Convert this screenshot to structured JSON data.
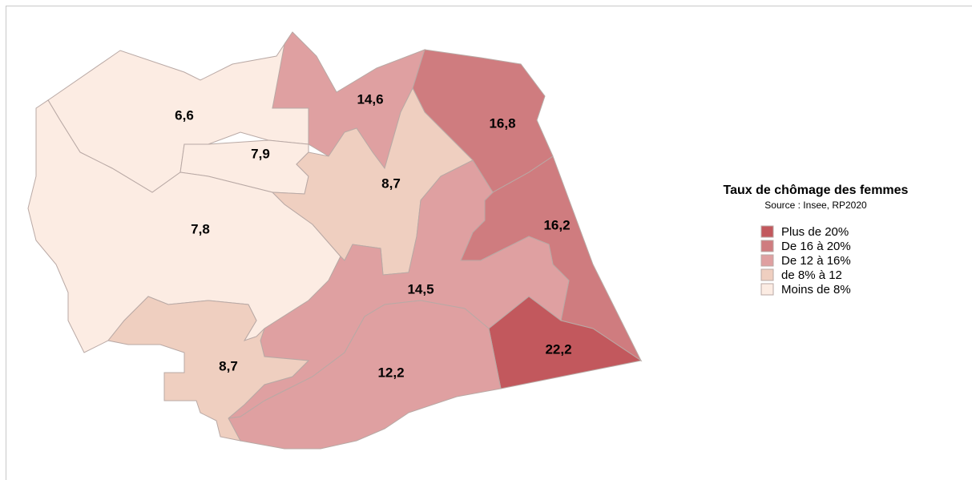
{
  "legend": {
    "title": "Taux de chômage des femmes",
    "source": "Source : Insee, RP2020",
    "items": [
      {
        "label": "Plus de 20%",
        "color": "#c2585d"
      },
      {
        "label": "De 16 à 20%",
        "color": "#cf7c7f"
      },
      {
        "label": "De 12 à 16%",
        "color": "#dfa0a1"
      },
      {
        "label": "de 8% à 12",
        "color": "#efcfc0"
      },
      {
        "label": "Moins de 8%",
        "color": "#fcece3"
      }
    ]
  },
  "regions": [
    {
      "label": "6,6",
      "color": "#fcece3"
    },
    {
      "label": "7,9",
      "color": "#fcece3"
    },
    {
      "label": "7,8",
      "color": "#fcece3"
    },
    {
      "label": "14,6",
      "color": "#dfa0a1"
    },
    {
      "label": "16,8",
      "color": "#cf7c7f"
    },
    {
      "label": "8,7",
      "color": "#efcfc0"
    },
    {
      "label": "16,2",
      "color": "#cf7c7f"
    },
    {
      "label": "14,5",
      "color": "#dfa0a1"
    },
    {
      "label": "22,2",
      "color": "#c2585d"
    },
    {
      "label": "12,2",
      "color": "#dfa0a1"
    },
    {
      "label": "8,7",
      "color": "#efcfc0"
    }
  ]
}
